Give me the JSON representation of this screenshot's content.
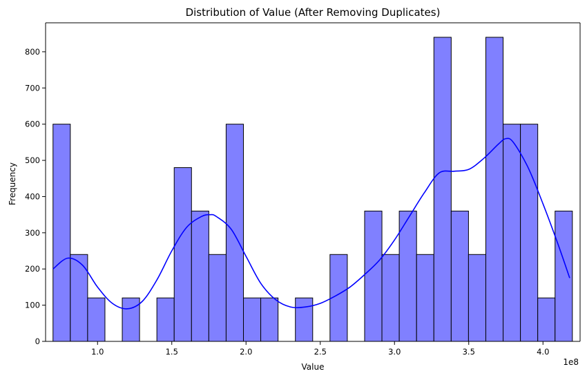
{
  "chart_data": {
    "type": "bar",
    "title": "Distribution of Value (After Removing Duplicates)",
    "xlabel": "Value",
    "ylabel": "Frequency",
    "x_offset_label": "1e8",
    "xlim": [
      0.65,
      4.25
    ],
    "ylim": [
      0,
      880
    ],
    "x_ticks": [
      1.0,
      1.5,
      2.0,
      2.5,
      3.0,
      3.5,
      4.0
    ],
    "x_tick_labels": [
      "1.0",
      "1.5",
      "2.0",
      "2.5",
      "3.0",
      "3.5",
      "4.0"
    ],
    "y_ticks": [
      0,
      100,
      200,
      300,
      400,
      500,
      600,
      700,
      800
    ],
    "y_tick_labels": [
      "0",
      "100",
      "200",
      "300",
      "400",
      "500",
      "600",
      "700",
      "800"
    ],
    "bins": {
      "start": 0.7,
      "width": 0.1166,
      "counts": [
        600,
        240,
        120,
        0,
        120,
        0,
        120,
        480,
        360,
        240,
        600,
        120,
        120,
        0,
        120,
        0,
        240,
        0,
        360,
        240,
        360,
        240,
        840,
        360,
        240,
        840,
        600,
        600,
        120,
        360
      ]
    },
    "kde": {
      "x": [
        0.7,
        0.8,
        0.9,
        1.0,
        1.1,
        1.2,
        1.3,
        1.4,
        1.5,
        1.6,
        1.7,
        1.76,
        1.8,
        1.9,
        2.0,
        2.1,
        2.2,
        2.3,
        2.4,
        2.5,
        2.6,
        2.7,
        2.8,
        2.9,
        3.0,
        3.1,
        3.2,
        3.3,
        3.4,
        3.5,
        3.6,
        3.7,
        3.75,
        3.8,
        3.9,
        4.0,
        4.1,
        4.18
      ],
      "y": [
        200,
        230,
        210,
        150,
        105,
        90,
        110,
        170,
        250,
        315,
        345,
        350,
        345,
        310,
        235,
        160,
        115,
        95,
        95,
        105,
        125,
        150,
        185,
        225,
        280,
        345,
        410,
        465,
        470,
        475,
        505,
        545,
        560,
        550,
        480,
        380,
        270,
        175
      ]
    },
    "series": [
      {
        "color": "#8080ff"
      },
      {
        "color": "#0000ff"
      }
    ]
  }
}
